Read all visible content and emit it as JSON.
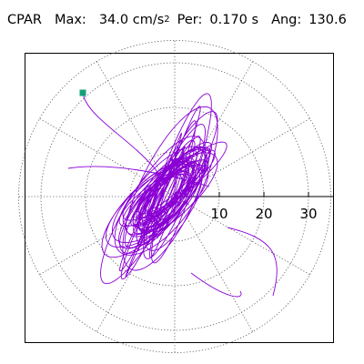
{
  "header": {
    "station": "CPAR",
    "max_label": "Max:",
    "max_value": "34.0",
    "max_unit": "cm/s",
    "max_unit_exp": "2",
    "per_label": "Per:",
    "per_value": "0.170 s",
    "ang_label": "Ang:",
    "ang_value": "130.6"
  },
  "chart_data": {
    "type": "polar-trajectory",
    "radial_ticks": [
      "10",
      "20",
      "30"
    ],
    "radial_tick_values": [
      10,
      20,
      30
    ],
    "rmax": 35,
    "grid": "dotted",
    "spokes_deg": [
      0,
      30,
      60,
      90,
      120,
      150,
      180,
      210,
      240,
      270,
      300,
      330
    ],
    "peak_angle_deg": 130.6,
    "peak_amplitude": 34.0,
    "colors": {
      "trace": "#8a00d4",
      "marker": "#15a07a",
      "grid": "#555555",
      "axis": "#000000"
    }
  }
}
